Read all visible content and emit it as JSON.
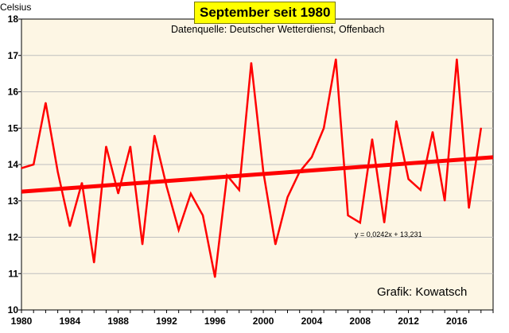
{
  "chart_data": {
    "type": "line",
    "title": "September seit 1980",
    "subtitle": "Datenquelle: Deutscher Wetterdienst, Offenbach",
    "ylabel": "Celsius",
    "xlabel": "",
    "credit": "Grafik: Kowatsch",
    "trend_label": "y = 0,0242x + 13,231",
    "ylim": [
      10,
      18
    ],
    "xlim": [
      1980,
      2019
    ],
    "y_ticks": [
      "10",
      "11",
      "12",
      "13",
      "14",
      "15",
      "16",
      "17",
      "18"
    ],
    "x_ticks": [
      "1980",
      "1984",
      "1988",
      "1992",
      "1996",
      "2000",
      "2004",
      "2008",
      "2012",
      "2016"
    ],
    "grid": "horizontal",
    "x": [
      1980,
      1981,
      1982,
      1983,
      1984,
      1985,
      1986,
      1987,
      1988,
      1989,
      1990,
      1991,
      1992,
      1993,
      1994,
      1995,
      1996,
      1997,
      1998,
      1999,
      2000,
      2001,
      2002,
      2003,
      2004,
      2005,
      2006,
      2007,
      2008,
      2009,
      2010,
      2011,
      2012,
      2013,
      2014,
      2015,
      2016,
      2017,
      2018
    ],
    "series": [
      {
        "values": [
          13.9,
          14.0,
          15.7,
          13.8,
          12.3,
          13.5,
          11.3,
          14.5,
          13.2,
          14.5,
          11.8,
          14.8,
          13.4,
          12.2,
          13.2,
          12.6,
          10.9,
          13.7,
          13.3,
          16.8,
          13.8,
          11.8,
          13.1,
          13.8,
          14.2,
          15.0,
          16.9,
          12.6,
          12.4,
          14.7,
          12.4,
          15.2,
          13.6,
          13.3,
          14.9,
          13.0,
          16.9,
          12.8,
          15.0
        ],
        "color": "#ff0000"
      }
    ],
    "trend": {
      "slope": 0.0242,
      "intercept": 13.231,
      "color": "#ff0000"
    },
    "colors": {
      "plot_background": "#fdf6e4",
      "gridline": "#bfbfbf",
      "title_background": "#ffff00"
    }
  }
}
